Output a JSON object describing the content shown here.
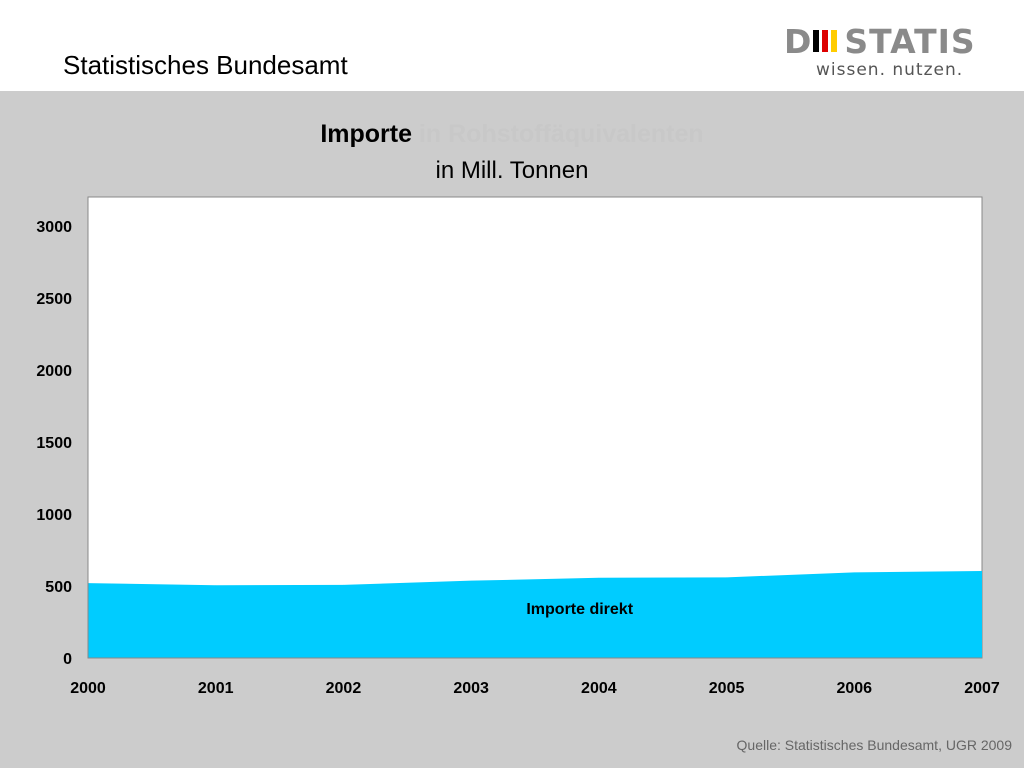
{
  "header": {
    "org_title": "Statistisches Bundesamt",
    "logo_text_left": "D",
    "logo_text_right": "STATIS",
    "logo_tagline": "wissen. nutzen.",
    "logo_bar_colors": [
      "#000000",
      "#dd0000",
      "#ffcc00"
    ]
  },
  "chart_data": {
    "type": "area",
    "title": "Importe",
    "title_faded": "in Rohstoffäquivalenten",
    "subtitle": "in Mill. Tonnen",
    "categories": [
      "2000",
      "2001",
      "2002",
      "2003",
      "2004",
      "2005",
      "2006",
      "2007"
    ],
    "series": [
      {
        "name": "Importe direkt",
        "values": [
          520,
          505,
          508,
          537,
          557,
          560,
          595,
          604
        ],
        "color": "#00ccff"
      }
    ],
    "ylim": [
      0,
      3000
    ],
    "yticks": [
      "0",
      "500",
      "1000",
      "1500",
      "2000",
      "2500",
      "3000"
    ],
    "grid": false,
    "background_color": "#ffffff",
    "xlabel": "",
    "ylabel": ""
  },
  "footer": {
    "source": "Quelle: Statistisches Bundesamt, UGR 2009"
  }
}
